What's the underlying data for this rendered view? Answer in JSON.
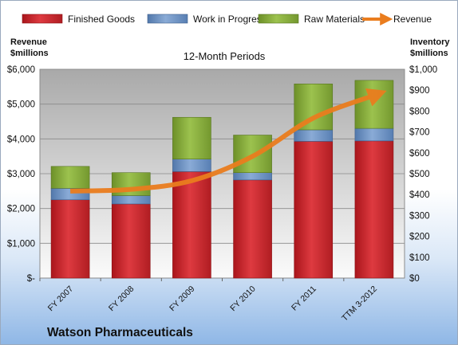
{
  "company": "Watson Pharmaceuticals",
  "chart_data": {
    "type": "bar",
    "stacked": true,
    "title": "12-Month Periods",
    "categories": [
      "FY 2007",
      "FY 2008",
      "FY 2009",
      "FY 2010",
      "FY 2011",
      "TTM 3-2012"
    ],
    "series": [
      {
        "name": "Finished Goods",
        "axis": "right",
        "color": "#d0262c",
        "values": [
          375,
          355,
          510,
          470,
          655,
          657
        ]
      },
      {
        "name": "Work in Progress",
        "axis": "right",
        "color": "#6f95c8",
        "values": [
          55,
          40,
          60,
          35,
          55,
          60
        ]
      },
      {
        "name": "Raw Materials",
        "axis": "right",
        "color": "#8aaf3c",
        "values": [
          105,
          110,
          200,
          180,
          220,
          230
        ]
      },
      {
        "name": "Revenue",
        "axis": "left",
        "type": "line",
        "color": "#ea7d1e",
        "values": [
          2500,
          2550,
          2800,
          3500,
          4600,
          5250
        ]
      }
    ],
    "left_axis": {
      "label_line1": "Revenue",
      "label_line2": "$millions",
      "ylim": [
        0,
        6000
      ],
      "ticks": [
        0,
        1000,
        2000,
        3000,
        4000,
        5000,
        6000
      ],
      "tick_labels": [
        "$-",
        "$1,000",
        "$2,000",
        "$3,000",
        "$4,000",
        "$5,000",
        "$6,000"
      ]
    },
    "right_axis": {
      "label_line1": "Inventory",
      "label_line2": "$millions",
      "ylim": [
        0,
        1000
      ],
      "ticks": [
        0,
        100,
        200,
        300,
        400,
        500,
        600,
        700,
        800,
        900,
        1000
      ],
      "tick_labels": [
        "$0",
        "$100",
        "$200",
        "$300",
        "$400",
        "$500",
        "$600",
        "$700",
        "$800",
        "$900",
        "$1,000"
      ]
    },
    "grid": true,
    "legend_position": "top"
  }
}
